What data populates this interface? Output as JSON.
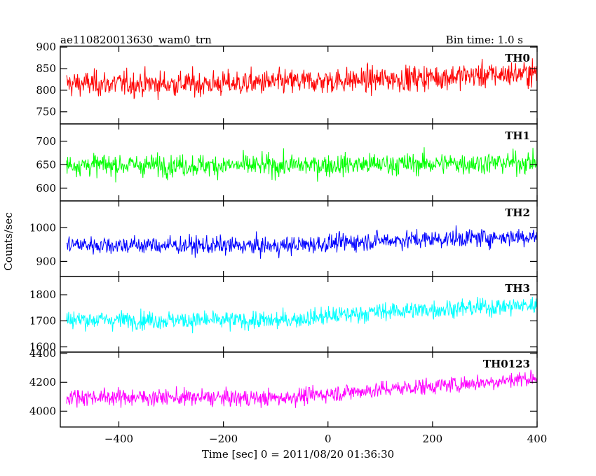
{
  "header": {
    "title": "ae110820013630_wam0_trn",
    "bin_time": "Bin time: 1.0 s"
  },
  "chart_data": {
    "type": "line",
    "title": "ae110820013630_wam0_trn",
    "xlabel": "Time [sec] 0 = 2011/08/20 01:36:30",
    "ylabel": "Counts/sec",
    "xlim": [
      -512,
      400
    ],
    "x_ticks": [
      "−400",
      "−200",
      "0",
      "200",
      "400"
    ],
    "x_tick_values": [
      -400,
      -200,
      0,
      200,
      400
    ],
    "grid": false,
    "panels": [
      {
        "name": "TH0",
        "color": "#ff0000",
        "ylim": [
          722,
          902
        ],
        "y_ticks": [
          750,
          800,
          850,
          900
        ],
        "x_range": [
          -500,
          400
        ],
        "trend": [
          [
            -500,
            815
          ],
          [
            -200,
            815
          ],
          [
            100,
            825
          ],
          [
            400,
            840
          ]
        ],
        "noise": 38
      },
      {
        "name": "TH1",
        "color": "#00ff00",
        "ylim": [
          573,
          737
        ],
        "y_ticks": [
          600,
          650,
          700
        ],
        "x_range": [
          -500,
          400
        ],
        "trend": [
          [
            -500,
            650
          ],
          [
            -100,
            648
          ],
          [
            400,
            655
          ]
        ],
        "noise": 30
      },
      {
        "name": "TH2",
        "color": "#0000ff",
        "ylim": [
          855,
          1080
        ],
        "y_ticks": [
          900,
          1000
        ],
        "x_range": [
          -500,
          400
        ],
        "trend": [
          [
            -500,
            950
          ],
          [
            -100,
            945
          ],
          [
            100,
            962
          ],
          [
            400,
            975
          ]
        ],
        "noise": 35
      },
      {
        "name": "TH3",
        "color": "#00ffff",
        "ylim": [
          1580,
          1870
        ],
        "y_ticks": [
          1600,
          1700,
          1800
        ],
        "x_range": [
          -500,
          400
        ],
        "trend": [
          [
            -500,
            1705
          ],
          [
            -100,
            1700
          ],
          [
            100,
            1735
          ],
          [
            400,
            1760
          ]
        ],
        "noise": 45
      },
      {
        "name": "TH0123",
        "color": "#ff00ff",
        "ylim": [
          3890,
          4410
        ],
        "y_ticks": [
          4000,
          4200,
          4400
        ],
        "x_range": [
          -500,
          400
        ],
        "trend": [
          [
            -500,
            4100
          ],
          [
            -100,
            4090
          ],
          [
            100,
            4150
          ],
          [
            300,
            4200
          ],
          [
            400,
            4235
          ]
        ],
        "noise": 75
      }
    ]
  }
}
